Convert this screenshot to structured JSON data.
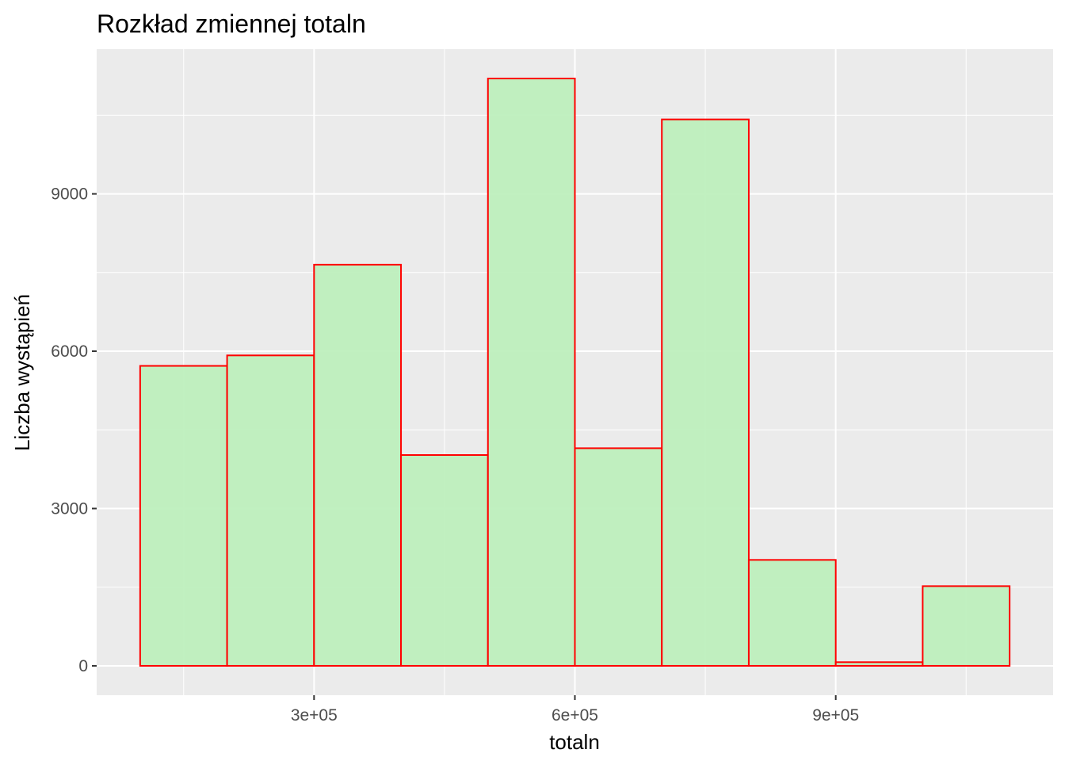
{
  "chart_data": {
    "type": "bar",
    "title": "Rozkład zmiennej totaln",
    "xlabel": "totaln",
    "ylabel": "Liczba wystąpień",
    "bins": [
      {
        "x0": 100000,
        "x1": 200000,
        "count": 5720
      },
      {
        "x0": 200000,
        "x1": 300000,
        "count": 5920
      },
      {
        "x0": 300000,
        "x1": 400000,
        "count": 7650
      },
      {
        "x0": 400000,
        "x1": 500000,
        "count": 4020
      },
      {
        "x0": 500000,
        "x1": 600000,
        "count": 11200
      },
      {
        "x0": 600000,
        "x1": 700000,
        "count": 4150
      },
      {
        "x0": 700000,
        "x1": 800000,
        "count": 10420
      },
      {
        "x0": 800000,
        "x1": 900000,
        "count": 2020
      },
      {
        "x0": 900000,
        "x1": 1000000,
        "count": 70
      },
      {
        "x0": 1000000,
        "x1": 1100000,
        "count": 1520
      }
    ],
    "xlim": [
      50000,
      1150000
    ],
    "ylim": [
      -560,
      11760
    ],
    "x_ticks": [
      {
        "value": 300000,
        "label": "3e+05"
      },
      {
        "value": 600000,
        "label": "6e+05"
      },
      {
        "value": 900000,
        "label": "9e+05"
      }
    ],
    "x_minor": [
      150000,
      450000,
      750000,
      1050000
    ],
    "y_ticks": [
      {
        "value": 0,
        "label": "0"
      },
      {
        "value": 3000,
        "label": "3000"
      },
      {
        "value": 6000,
        "label": "6000"
      },
      {
        "value": 9000,
        "label": "9000"
      }
    ],
    "y_minor": [
      1500,
      4500,
      7500,
      10500
    ],
    "grid": true,
    "legend": "none",
    "colors": {
      "panel": "#ebebeb",
      "grid": "#ffffff",
      "bar_fill": "#beefbd",
      "bar_stroke": "#ff0000",
      "tick_text": "#4d4d4d"
    }
  }
}
